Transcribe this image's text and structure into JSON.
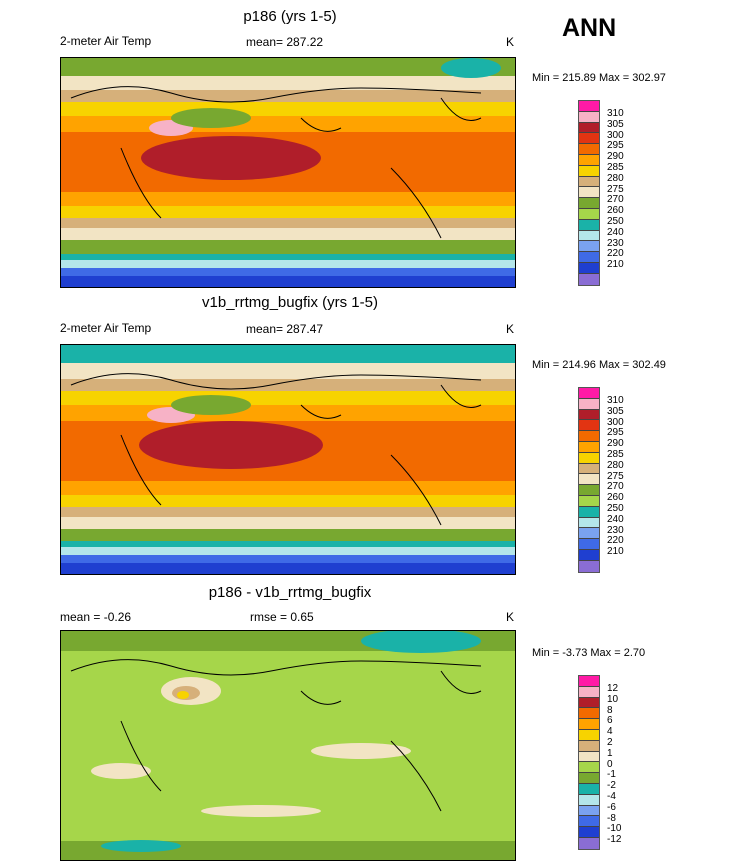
{
  "season": "ANN",
  "colors": {
    "abs": [
      "#8a6dd4",
      "#1f3fd0",
      "#3f6ae6",
      "#7aa2f0",
      "#b4e6ea",
      "#1ab2a8",
      "#a6d64a",
      "#78a830",
      "#f2e4c4",
      "#d6b07a",
      "#f7d300",
      "#ffa300",
      "#f26a00",
      "#e23412",
      "#b01e2a",
      "#f7b2c6",
      "#ff1aa6"
    ],
    "diff": [
      "#8a6dd4",
      "#1f3fd0",
      "#3f6ae6",
      "#7aa2f0",
      "#b4e6ea",
      "#1ab2a8",
      "#78a830",
      "#a6d64a",
      "#f2e4c4",
      "#d6b07a",
      "#f7d300",
      "#ffa300",
      "#f26a00",
      "#b01e2a",
      "#f7b2c6",
      "#ff1aa6"
    ]
  },
  "panels": [
    {
      "title": "p186 (yrs 1-5)",
      "variable": "2-meter Air Temp",
      "stat": "mean= 287.22",
      "rmse": "",
      "units": "K",
      "minmax": "Min = 215.89 Max = 302.97",
      "legend_labels": [
        "310",
        "305",
        "300",
        "295",
        "290",
        "285",
        "280",
        "275",
        "270",
        "260",
        "250",
        "240",
        "230",
        "220",
        "210"
      ],
      "legend_colors": "abs"
    },
    {
      "title": "v1b_rrtmg_bugfix (yrs 1-5)",
      "variable": "2-meter Air Temp",
      "stat": "mean= 287.47",
      "rmse": "",
      "units": "K",
      "minmax": "Min = 214.96 Max = 302.49",
      "legend_labels": [
        "310",
        "305",
        "300",
        "295",
        "290",
        "285",
        "280",
        "275",
        "270",
        "260",
        "250",
        "240",
        "230",
        "220",
        "210"
      ],
      "legend_colors": "abs"
    },
    {
      "title": "p186 - v1b_rrtmg_bugfix",
      "variable": "",
      "stat": "mean = -0.26",
      "rmse": "rmse = 0.65",
      "units": "K",
      "minmax": "Min = -3.73 Max = 2.70",
      "legend_labels": [
        "12",
        "10",
        "8",
        "6",
        "4",
        "2",
        "1",
        "0",
        "-1",
        "-2",
        "-4",
        "-6",
        "-8",
        "-10",
        "-12"
      ],
      "legend_colors": "diff"
    }
  ]
}
